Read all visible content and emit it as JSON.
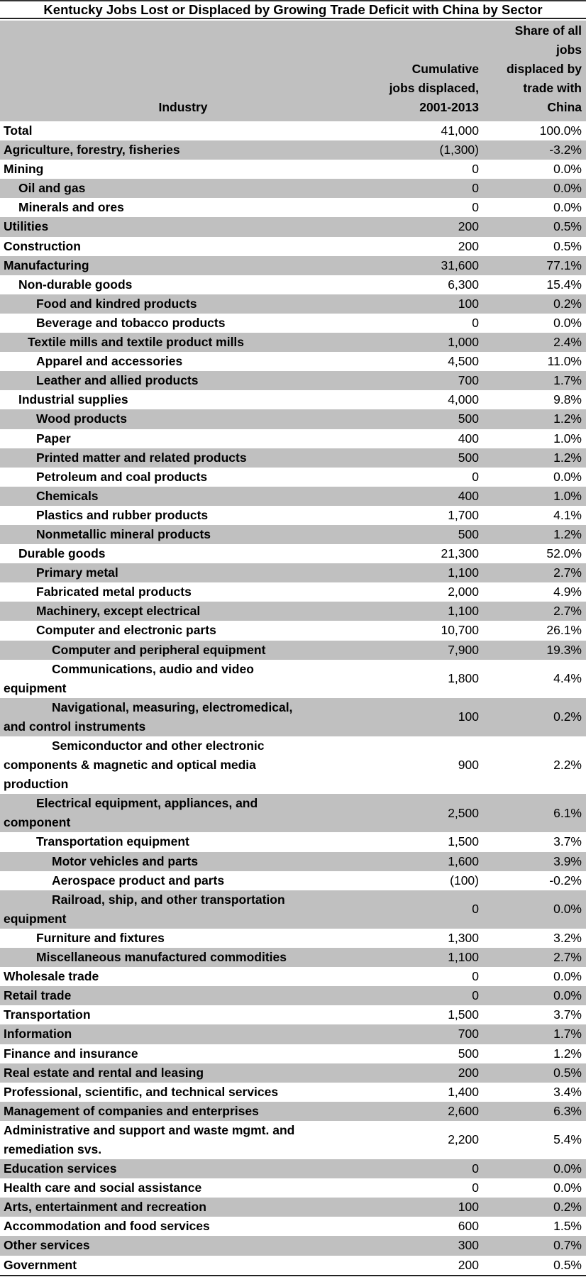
{
  "title": "Kentucky Jobs Lost or Displaced by Growing Trade Deficit with China by Sector",
  "header": {
    "industry": [
      "Industry"
    ],
    "jobs": [
      "Cumulative",
      "jobs displaced,",
      "2001-2013"
    ],
    "share": [
      "Share of all",
      "jobs",
      "displaced by",
      "trade with",
      "China"
    ]
  },
  "colors": {
    "band_gray": "#C0C0C0",
    "white": "#FFFFFF",
    "text": "#000000"
  },
  "rows": [
    {
      "industry": "Total",
      "indent": 0,
      "jobs": "41,000",
      "share": "100.0%"
    },
    {
      "industry": "Agriculture, forestry, fisheries",
      "indent": 0,
      "jobs": "(1,300)",
      "share": "-3.2%"
    },
    {
      "industry": "Mining",
      "indent": 0,
      "jobs": "0",
      "share": "0.0%"
    },
    {
      "industry": "Oil and gas",
      "indent": 1,
      "jobs": "0",
      "share": "0.0%"
    },
    {
      "industry": "Minerals and ores",
      "indent": 1,
      "jobs": "0",
      "share": "0.0%"
    },
    {
      "industry": "Utilities",
      "indent": 0,
      "jobs": "200",
      "share": "0.5%"
    },
    {
      "industry": "Construction",
      "indent": 0,
      "jobs": "200",
      "share": "0.5%"
    },
    {
      "industry": "Manufacturing",
      "indent": 0,
      "jobs": "31,600",
      "share": "77.1%"
    },
    {
      "industry": "Non-durable goods",
      "indent": 1,
      "jobs": "6,300",
      "share": "15.4%"
    },
    {
      "industry": "Food and kindred products",
      "indent": 2,
      "jobs": "100",
      "share": "0.2%"
    },
    {
      "industry": "Beverage and tobacco products",
      "indent": 2,
      "jobs": "0",
      "share": "0.0%"
    },
    {
      "industry": "Textile mills and textile product mills",
      "indent": 1.5,
      "jobs": "1,000",
      "share": "2.4%"
    },
    {
      "industry": "Apparel and accessories",
      "indent": 2,
      "jobs": "4,500",
      "share": "11.0%"
    },
    {
      "industry": "Leather and allied products",
      "indent": 2,
      "jobs": "700",
      "share": "1.7%"
    },
    {
      "industry": "Industrial supplies",
      "indent": 1,
      "jobs": "4,000",
      "share": "9.8%"
    },
    {
      "industry": "Wood products",
      "indent": 2,
      "jobs": "500",
      "share": "1.2%"
    },
    {
      "industry": "Paper",
      "indent": 2,
      "jobs": "400",
      "share": "1.0%"
    },
    {
      "industry": "Printed matter and related products",
      "indent": 2,
      "jobs": "500",
      "share": "1.2%"
    },
    {
      "industry": "Petroleum and coal products",
      "indent": 2,
      "jobs": "0",
      "share": "0.0%"
    },
    {
      "industry": "Chemicals",
      "indent": 2,
      "jobs": "400",
      "share": "1.0%"
    },
    {
      "industry": "Plastics and rubber products",
      "indent": 2,
      "jobs": "1,700",
      "share": "4.1%"
    },
    {
      "industry": "Nonmetallic mineral products",
      "indent": 2,
      "jobs": "500",
      "share": "1.2%"
    },
    {
      "industry": "Durable goods",
      "indent": 1,
      "jobs": "21,300",
      "share": "52.0%"
    },
    {
      "industry": "Primary metal",
      "indent": 2,
      "jobs": "1,100",
      "share": "2.7%"
    },
    {
      "industry": "Fabricated metal products",
      "indent": 2,
      "jobs": "2,000",
      "share": "4.9%"
    },
    {
      "industry": "Machinery, except electrical",
      "indent": 2,
      "jobs": "1,100",
      "share": "2.7%"
    },
    {
      "industry": "Computer and electronic parts",
      "indent": 2,
      "jobs": "10,700",
      "share": "26.1%"
    },
    {
      "industry": "Computer and peripheral equipment",
      "indent": 3,
      "jobs": "7,900",
      "share": "19.3%"
    },
    {
      "industry": "Communications, audio and video",
      "continuation": [
        "equipment"
      ],
      "indent": 3,
      "jobs": "1,800",
      "share": "4.4%"
    },
    {
      "industry": "Navigational, measuring, electromedical,",
      "continuation": [
        "and control instruments"
      ],
      "indent": 3,
      "jobs": "100",
      "share": "0.2%"
    },
    {
      "industry": "Semiconductor and other electronic",
      "continuation": [
        "components & magnetic and optical media",
        "production"
      ],
      "indent": 3,
      "jobs": "900",
      "share": "2.2%"
    },
    {
      "industry": "Electrical equipment, appliances, and",
      "continuation": [
        "component"
      ],
      "indent": 2,
      "jobs": "2,500",
      "share": "6.1%"
    },
    {
      "industry": "Transportation equipment",
      "indent": 2,
      "jobs": "1,500",
      "share": "3.7%"
    },
    {
      "industry": "Motor vehicles and parts",
      "indent": 3,
      "jobs": "1,600",
      "share": "3.9%"
    },
    {
      "industry": "Aerospace product and parts",
      "indent": 3,
      "jobs": "(100)",
      "share": "-0.2%"
    },
    {
      "industry": "Railroad, ship, and other transportation",
      "continuation": [
        "equipment"
      ],
      "indent": 3,
      "jobs": "0",
      "share": "0.0%"
    },
    {
      "industry": "Furniture and fixtures",
      "indent": 2,
      "jobs": "1,300",
      "share": "3.2%"
    },
    {
      "industry": "Miscellaneous manufactured commodities",
      "indent": 2,
      "jobs": "1,100",
      "share": "2.7%"
    },
    {
      "industry": "Wholesale trade",
      "indent": 0,
      "jobs": "0",
      "share": "0.0%"
    },
    {
      "industry": "Retail trade",
      "indent": 0,
      "jobs": "0",
      "share": "0.0%"
    },
    {
      "industry": "Transportation",
      "indent": 0,
      "jobs": "1,500",
      "share": "3.7%"
    },
    {
      "industry": "Information",
      "indent": 0,
      "jobs": "700",
      "share": "1.7%"
    },
    {
      "industry": "Finance and insurance",
      "indent": 0,
      "jobs": "500",
      "share": "1.2%"
    },
    {
      "industry": "Real estate and rental and leasing",
      "indent": 0,
      "jobs": "200",
      "share": "0.5%"
    },
    {
      "industry": "Professional, scientific, and technical services",
      "indent": 0,
      "jobs": "1,400",
      "share": "3.4%"
    },
    {
      "industry": "Management of companies and enterprises",
      "indent": 0,
      "jobs": "2,600",
      "share": "6.3%"
    },
    {
      "industry": "Administrative and support and waste mgmt. and",
      "continuation": [
        "remediation svs."
      ],
      "indent": 0,
      "jobs": "2,200",
      "share": "5.4%"
    },
    {
      "industry": "Education services",
      "indent": 0,
      "jobs": "0",
      "share": "0.0%"
    },
    {
      "industry": "Health care and social assistance",
      "indent": 0,
      "jobs": "0",
      "share": "0.0%"
    },
    {
      "industry": "Arts, entertainment and recreation",
      "indent": 0,
      "jobs": "100",
      "share": "0.2%"
    },
    {
      "industry": "Accommodation and food services",
      "indent": 0,
      "jobs": "600",
      "share": "1.5%"
    },
    {
      "industry": "Other services",
      "indent": 0,
      "jobs": "300",
      "share": "0.7%"
    },
    {
      "industry": "Government",
      "indent": 0,
      "jobs": "200",
      "share": "0.5%"
    }
  ]
}
